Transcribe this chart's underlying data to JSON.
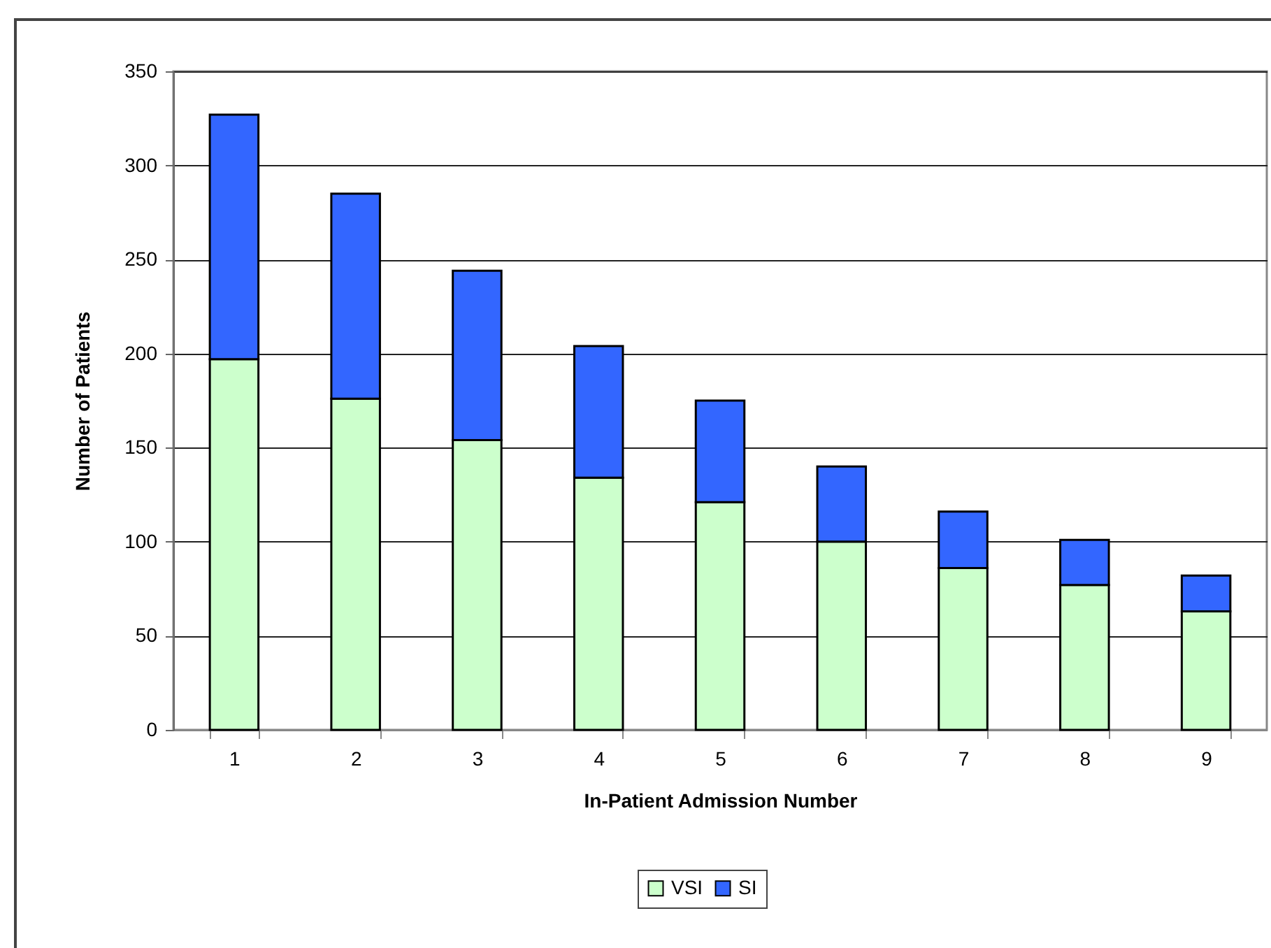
{
  "chart_data": {
    "type": "bar",
    "stacked": true,
    "xlabel": "In-Patient Admission Number",
    "ylabel": "Number of Patients",
    "categories": [
      "1",
      "2",
      "3",
      "4",
      "5",
      "6",
      "7",
      "8",
      "9"
    ],
    "series": [
      {
        "name": "VSI",
        "color": "#ccffcc",
        "values": [
          197,
          176,
          154,
          134,
          121,
          100,
          86,
          77,
          63
        ]
      },
      {
        "name": "SI",
        "color": "#3366ff",
        "values": [
          130,
          109,
          90,
          70,
          54,
          40,
          30,
          24,
          19
        ]
      }
    ],
    "ylim": [
      0,
      350
    ],
    "yticks": [
      0,
      50,
      100,
      150,
      200,
      250,
      300,
      350
    ],
    "grid": "y",
    "legend": "bottom"
  }
}
